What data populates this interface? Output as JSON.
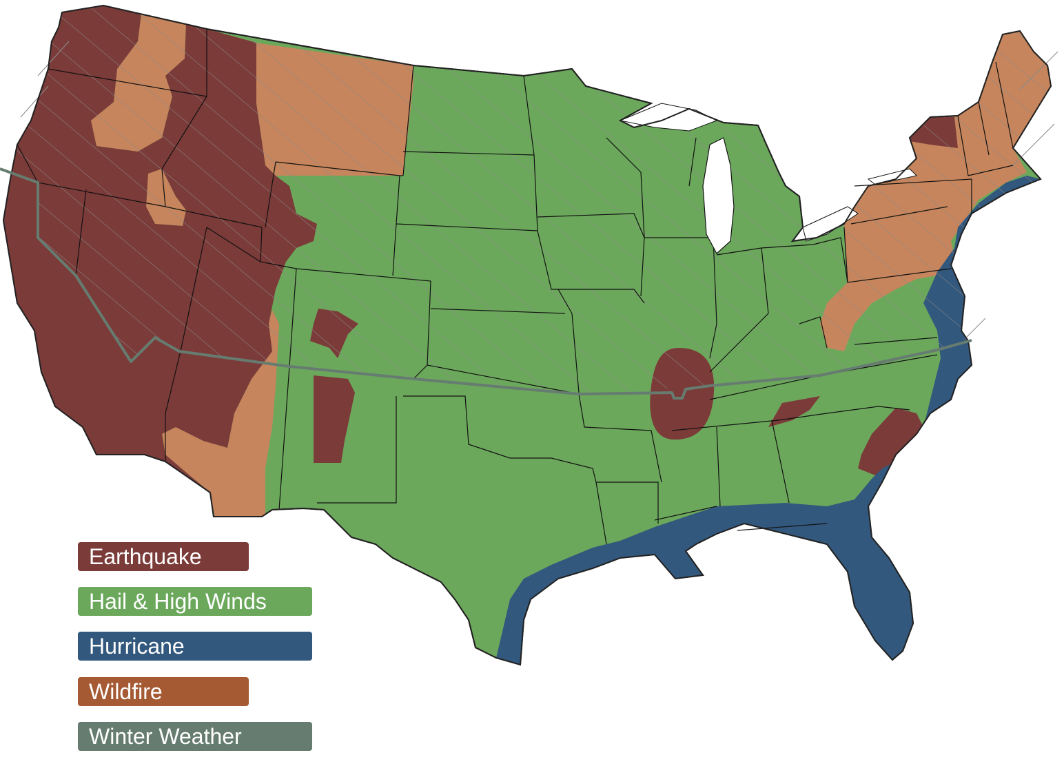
{
  "map": {
    "region": "Contiguous United States",
    "style": "state outlines with hazard zones, diagonal hatch over winter-weather area"
  },
  "colors": {
    "earthquake": "#7b3b39",
    "hail_high_winds": "#6ca85c",
    "hurricane": "#33587d",
    "wildfire_map": "#c6855c",
    "wildfire_legend": "#a55a33",
    "winter_weather": "#667c70",
    "state_borders": "#111111"
  },
  "legend": {
    "items": [
      {
        "key": "earthquake",
        "label": "Earthquake",
        "color": "#7b3b39"
      },
      {
        "key": "hail_high_winds",
        "label": "Hail & High Winds",
        "color": "#6ca85c"
      },
      {
        "key": "hurricane",
        "label": "Hurricane",
        "color": "#33587d"
      },
      {
        "key": "wildfire",
        "label": "Wildfire",
        "color": "#a55a33"
      },
      {
        "key": "winter_weather",
        "label": "Winter Weather",
        "color": "#667c70"
      }
    ]
  }
}
